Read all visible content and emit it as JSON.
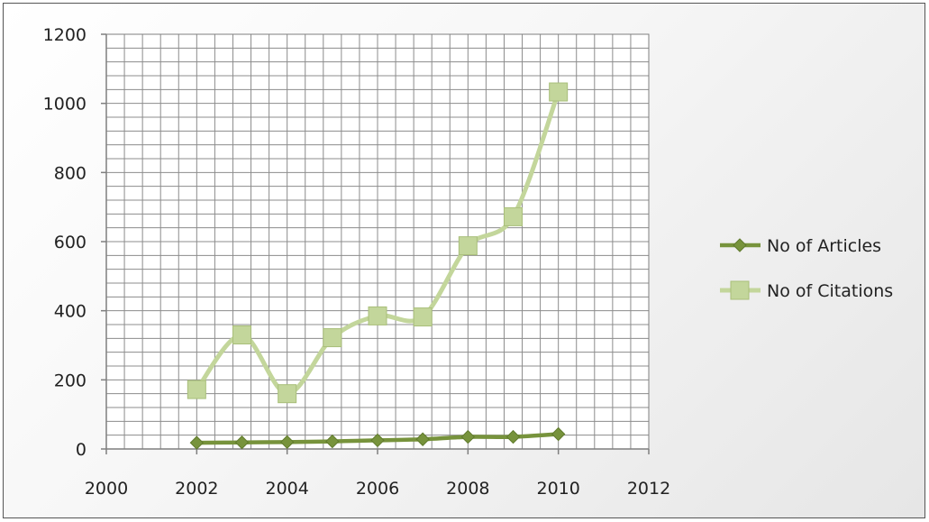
{
  "chart_data": {
    "type": "scatter",
    "title": "",
    "xlabel": "",
    "ylabel": "",
    "xlim": [
      2000,
      2012
    ],
    "ylim": [
      0,
      1200
    ],
    "x_ticks": [
      "2000",
      "2002",
      "2004",
      "2006",
      "2008",
      "2010",
      "2012"
    ],
    "y_ticks": [
      "0",
      "200",
      "400",
      "600",
      "800",
      "1000",
      "1200"
    ],
    "grid": true,
    "legend_position": "right",
    "series": [
      {
        "name": "No of Articles",
        "marker": "diamond",
        "color": "#77933c",
        "x": [
          2002,
          2003,
          2004,
          2005,
          2006,
          2007,
          2008,
          2009,
          2010
        ],
        "y": [
          18,
          19,
          20,
          22,
          25,
          28,
          35,
          35,
          43
        ]
      },
      {
        "name": "No of Citations",
        "marker": "square",
        "color": "#c3d69b",
        "x": [
          2002,
          2003,
          2004,
          2005,
          2006,
          2007,
          2008,
          2009,
          2010
        ],
        "y": [
          172,
          330,
          160,
          322,
          385,
          382,
          588,
          672,
          1033
        ]
      }
    ]
  }
}
